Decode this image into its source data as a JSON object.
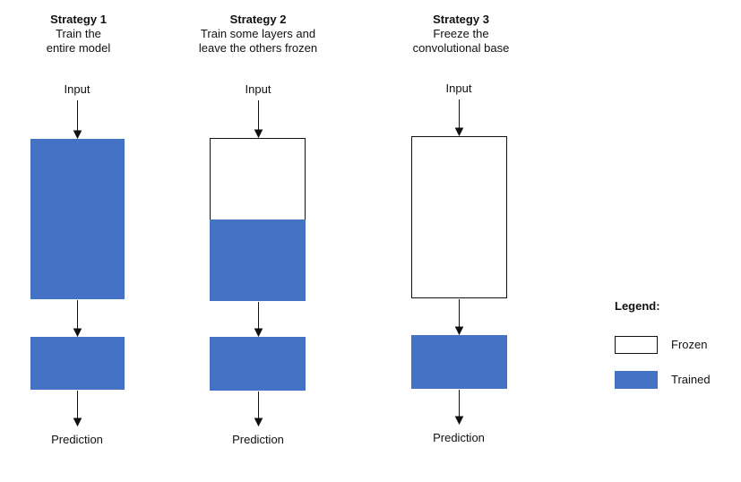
{
  "colors": {
    "trained": "#4472c4",
    "frozen": "#ffffff",
    "stroke": "#111111"
  },
  "strategies": [
    {
      "title": "Strategy 1",
      "desc1": "Train the",
      "desc2": "entire model",
      "input": "Input",
      "output": "Prediction"
    },
    {
      "title": "Strategy 2",
      "desc1": "Train some layers and",
      "desc2": "leave the others frozen",
      "input": "Input",
      "output": "Prediction"
    },
    {
      "title": "Strategy 3",
      "desc1": "Freeze the",
      "desc2": "convolutional base",
      "input": "Input",
      "output": "Prediction"
    }
  ],
  "legend": {
    "title": "Legend:",
    "frozen": "Frozen",
    "trained": "Trained"
  }
}
